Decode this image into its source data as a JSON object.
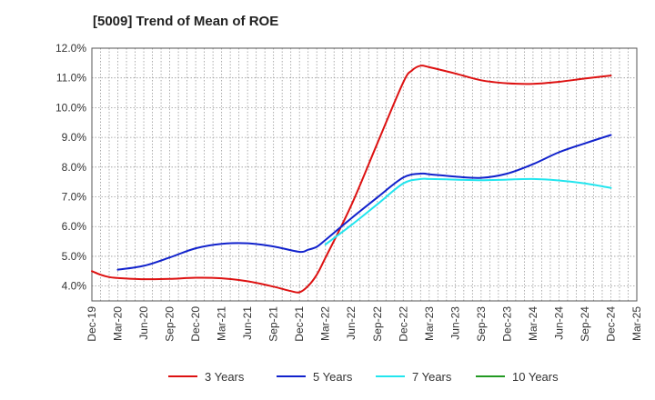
{
  "chart_data": {
    "type": "line",
    "title": "[5009]  Trend of Mean of ROE",
    "xlabel": "",
    "ylabel": "",
    "y_unit": "%",
    "ylim": [
      3.5,
      12.0
    ],
    "y_ticks": [
      4.0,
      5.0,
      6.0,
      7.0,
      8.0,
      9.0,
      10.0,
      11.0,
      12.0
    ],
    "y_tick_labels": [
      "4.0%",
      "5.0%",
      "6.0%",
      "7.0%",
      "8.0%",
      "9.0%",
      "10.0%",
      "11.0%",
      "12.0%"
    ],
    "x_tick_labels": [
      "Dec-19",
      "Mar-20",
      "Jun-20",
      "Sep-20",
      "Dec-20",
      "Mar-21",
      "Jun-21",
      "Sep-21",
      "Dec-21",
      "Mar-22",
      "Jun-22",
      "Sep-22",
      "Dec-22",
      "Mar-23",
      "Jun-23",
      "Sep-23",
      "Dec-23",
      "Mar-24",
      "Jun-24",
      "Sep-24",
      "Dec-24",
      "Mar-25"
    ],
    "grid": true,
    "legend_position": "bottom",
    "series": [
      {
        "name": "3 Years",
        "color": "#dd1111",
        "points": [
          [
            "Dec-19",
            4.5
          ],
          [
            "Jan-20",
            4.38
          ],
          [
            "Feb-20",
            4.3
          ],
          [
            "Mar-20",
            4.27
          ],
          [
            "Jun-20",
            4.23
          ],
          [
            "Sep-20",
            4.24
          ],
          [
            "Dec-20",
            4.28
          ],
          [
            "Mar-21",
            4.26
          ],
          [
            "Jun-21",
            4.16
          ],
          [
            "Sep-21",
            3.98
          ],
          [
            "Nov-21",
            3.83
          ],
          [
            "Dec-21",
            3.79
          ],
          [
            "Jan-22",
            4.0
          ],
          [
            "Feb-22",
            4.38
          ],
          [
            "Mar-22",
            4.95
          ],
          [
            "Jun-22",
            6.72
          ],
          [
            "Sep-22",
            8.8
          ],
          [
            "Dec-22",
            10.85
          ],
          [
            "Jan-23",
            11.25
          ],
          [
            "Feb-23",
            11.41
          ],
          [
            "Mar-23",
            11.36
          ],
          [
            "Jun-23",
            11.15
          ],
          [
            "Sep-23",
            10.92
          ],
          [
            "Dec-23",
            10.82
          ],
          [
            "Mar-24",
            10.8
          ],
          [
            "Jun-24",
            10.87
          ],
          [
            "Sep-24",
            10.98
          ],
          [
            "Dec-24",
            11.08
          ]
        ]
      },
      {
        "name": "5 Years",
        "color": "#1122cc",
        "points": [
          [
            "Mar-20",
            4.55
          ],
          [
            "Jun-20",
            4.68
          ],
          [
            "Sep-20",
            4.96
          ],
          [
            "Dec-20",
            5.27
          ],
          [
            "Mar-21",
            5.42
          ],
          [
            "Jun-21",
            5.44
          ],
          [
            "Sep-21",
            5.33
          ],
          [
            "Dec-21",
            5.15
          ],
          [
            "Jan-22",
            5.22
          ],
          [
            "Feb-22",
            5.32
          ],
          [
            "Mar-22",
            5.55
          ],
          [
            "Jun-22",
            6.28
          ],
          [
            "Sep-22",
            6.98
          ],
          [
            "Dec-22",
            7.65
          ],
          [
            "Feb-23",
            7.78
          ],
          [
            "Mar-23",
            7.76
          ],
          [
            "Jun-23",
            7.68
          ],
          [
            "Sep-23",
            7.64
          ],
          [
            "Dec-23",
            7.78
          ],
          [
            "Mar-24",
            8.1
          ],
          [
            "Jun-24",
            8.5
          ],
          [
            "Sep-24",
            8.8
          ],
          [
            "Dec-24",
            9.08
          ]
        ]
      },
      {
        "name": "7 Years",
        "color": "#22e5ee",
        "points": [
          [
            "Mar-22",
            5.4
          ],
          [
            "Jun-22",
            6.05
          ],
          [
            "Sep-22",
            6.75
          ],
          [
            "Dec-22",
            7.45
          ],
          [
            "Feb-23",
            7.6
          ],
          [
            "Mar-23",
            7.6
          ],
          [
            "Jun-23",
            7.58
          ],
          [
            "Sep-23",
            7.56
          ],
          [
            "Dec-23",
            7.58
          ],
          [
            "Mar-24",
            7.6
          ],
          [
            "Jun-24",
            7.55
          ],
          [
            "Sep-24",
            7.45
          ],
          [
            "Dec-24",
            7.3
          ]
        ]
      },
      {
        "name": "10 Years",
        "color": "#229922",
        "points": []
      }
    ]
  }
}
